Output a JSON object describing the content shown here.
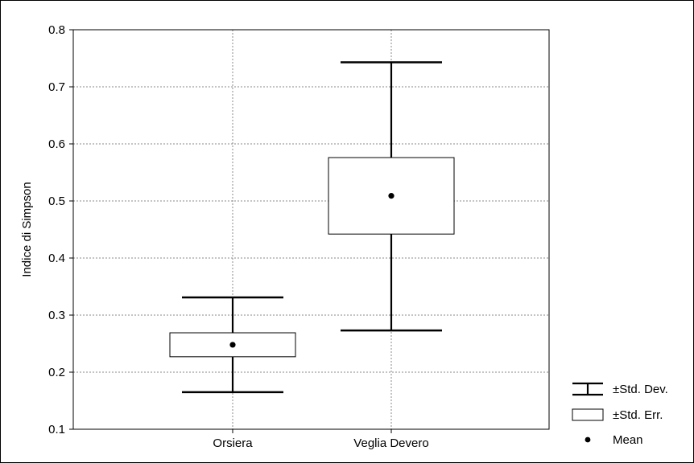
{
  "chart_data": {
    "type": "box",
    "title": "",
    "xlabel": "",
    "ylabel": "Indice di Simpson",
    "ylim": [
      0.1,
      0.8
    ],
    "yticks": [
      0.1,
      0.2,
      0.3,
      0.4,
      0.5,
      0.6,
      0.7,
      0.8
    ],
    "ytick_labels": [
      "0.1",
      "0.2",
      "0.3",
      "0.4",
      "0.5",
      "0.6",
      "0.7",
      "0.8"
    ],
    "categories": [
      "Orsiera",
      "Veglia Devero"
    ],
    "grid": true,
    "legend_position": "bottom-right",
    "legend": [
      {
        "symbol": "whisker",
        "label": "±Std. Dev."
      },
      {
        "symbol": "box",
        "label": "±Std. Err."
      },
      {
        "symbol": "dot",
        "label": "Mean"
      }
    ],
    "groups": [
      {
        "category": "Orsiera",
        "mean": 0.248,
        "se_low": 0.227,
        "se_high": 0.269,
        "sd_low": 0.165,
        "sd_high": 0.331
      },
      {
        "category": "Veglia Devero",
        "mean": 0.509,
        "se_low": 0.442,
        "se_high": 0.576,
        "sd_low": 0.273,
        "sd_high": 0.743
      }
    ]
  }
}
